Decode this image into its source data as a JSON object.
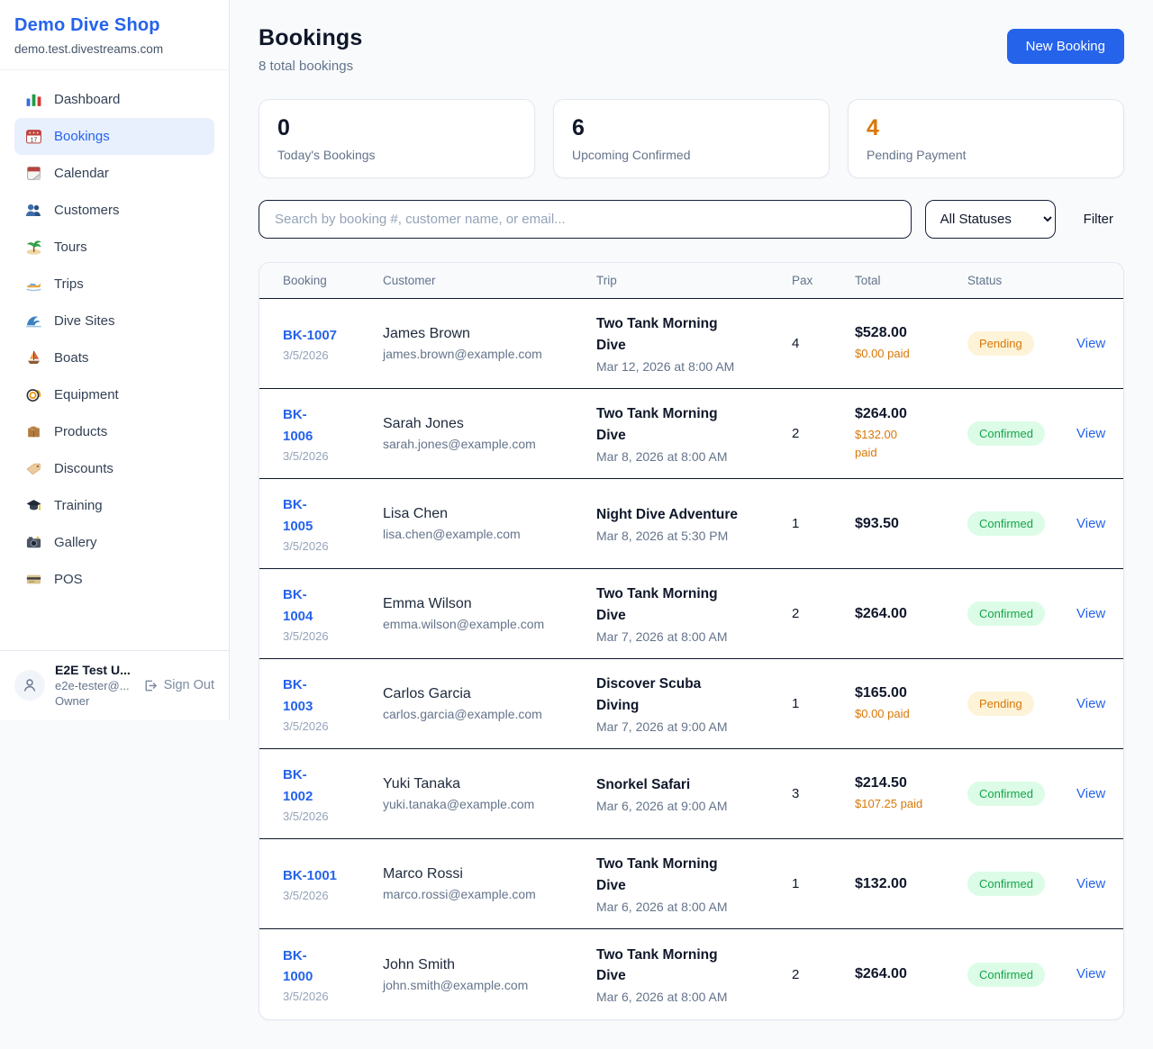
{
  "colors": {
    "accent": "#2563eb",
    "pending": "#d97706",
    "confirmed": "#16a34a",
    "pending_bg": "#fdf3d8",
    "confirmed_bg": "#dcfce7",
    "page_bg": "#f8fafc"
  },
  "app": {
    "name": "Demo Dive Shop",
    "domain": "demo.test.divestreams.com"
  },
  "sidebar": {
    "items": [
      {
        "label": "Dashboard",
        "icon": "bar-chart-icon",
        "active": false
      },
      {
        "label": "Bookings",
        "icon": "calendar-17-icon",
        "active": true
      },
      {
        "label": "Calendar",
        "icon": "tear-calendar-icon",
        "active": false
      },
      {
        "label": "Customers",
        "icon": "people-icon",
        "active": false
      },
      {
        "label": "Tours",
        "icon": "island-icon",
        "active": false
      },
      {
        "label": "Trips",
        "icon": "speedboat-icon",
        "active": false
      },
      {
        "label": "Dive Sites",
        "icon": "wave-icon",
        "active": false
      },
      {
        "label": "Boats",
        "icon": "sailboat-icon",
        "active": false
      },
      {
        "label": "Equipment",
        "icon": "dive-mask-icon",
        "active": false
      },
      {
        "label": "Products",
        "icon": "package-icon",
        "active": false
      },
      {
        "label": "Discounts",
        "icon": "tag-icon",
        "active": false
      },
      {
        "label": "Training",
        "icon": "graduation-cap-icon",
        "active": false
      },
      {
        "label": "Gallery",
        "icon": "camera-icon",
        "active": false
      },
      {
        "label": "POS",
        "icon": "credit-card-icon",
        "active": false
      }
    ],
    "user": {
      "name": "E2E Test U...",
      "email": "e2e-tester@...",
      "role": "Owner",
      "sign_out_label": "Sign Out"
    }
  },
  "header": {
    "title": "Bookings",
    "subtitle": "8 total bookings",
    "new_booking_label": "New Booking"
  },
  "stats": [
    {
      "value": "0",
      "label": "Today's Bookings",
      "highlight": false
    },
    {
      "value": "6",
      "label": "Upcoming Confirmed",
      "highlight": false
    },
    {
      "value": "4",
      "label": "Pending Payment",
      "highlight": true
    }
  ],
  "filters": {
    "search_placeholder": "Search by booking #, customer name, or email...",
    "status_selected": "All Statuses",
    "filter_label": "Filter"
  },
  "table": {
    "columns": [
      "Booking",
      "Customer",
      "Trip",
      "Pax",
      "Total",
      "Status"
    ],
    "view_label": "View",
    "rows": [
      {
        "id": "BK-1007",
        "id_two_line": false,
        "date": "3/5/2026",
        "customer": "James Brown",
        "email": "james.brown@example.com",
        "trip": "Two Tank Morning Dive",
        "trip_two_line": true,
        "trip_datetime": "Mar 12, 2026 at 8:00 AM",
        "pax": "4",
        "total": "$528.00",
        "paid": "$0.00 paid",
        "paid_two_line": false,
        "status": "Pending"
      },
      {
        "id": "BK-1006",
        "id_two_line": true,
        "date": "3/5/2026",
        "customer": "Sarah Jones",
        "email": "sarah.jones@example.com",
        "trip": "Two Tank Morning Dive",
        "trip_two_line": true,
        "trip_datetime": "Mar 8, 2026 at 8:00 AM",
        "pax": "2",
        "total": "$264.00",
        "paid": "$132.00 paid",
        "paid_two_line": true,
        "status": "Confirmed"
      },
      {
        "id": "BK-1005",
        "id_two_line": true,
        "date": "3/5/2026",
        "customer": "Lisa Chen",
        "email": "lisa.chen@example.com",
        "trip": "Night Dive Adventure",
        "trip_two_line": false,
        "trip_datetime": "Mar 8, 2026 at 5:30 PM",
        "pax": "1",
        "total": "$93.50",
        "paid": null,
        "paid_two_line": false,
        "status": "Confirmed"
      },
      {
        "id": "BK-1004",
        "id_two_line": true,
        "date": "3/5/2026",
        "customer": "Emma Wilson",
        "email": "emma.wilson@example.com",
        "trip": "Two Tank Morning Dive",
        "trip_two_line": true,
        "trip_datetime": "Mar 7, 2026 at 8:00 AM",
        "pax": "2",
        "total": "$264.00",
        "paid": null,
        "paid_two_line": false,
        "status": "Confirmed"
      },
      {
        "id": "BK-1003",
        "id_two_line": true,
        "date": "3/5/2026",
        "customer": "Carlos Garcia",
        "email": "carlos.garcia@example.com",
        "trip": "Discover Scuba Diving",
        "trip_two_line": true,
        "trip_datetime": "Mar 7, 2026 at 9:00 AM",
        "pax": "1",
        "total": "$165.00",
        "paid": "$0.00 paid",
        "paid_two_line": false,
        "status": "Pending"
      },
      {
        "id": "BK-1002",
        "id_two_line": true,
        "date": "3/5/2026",
        "customer": "Yuki Tanaka",
        "email": "yuki.tanaka@example.com",
        "trip": "Snorkel Safari",
        "trip_two_line": false,
        "trip_datetime": "Mar 6, 2026 at 9:00 AM",
        "pax": "3",
        "total": "$214.50",
        "paid": "$107.25 paid",
        "paid_two_line": false,
        "status": "Confirmed"
      },
      {
        "id": "BK-1001",
        "id_two_line": false,
        "date": "3/5/2026",
        "customer": "Marco Rossi",
        "email": "marco.rossi@example.com",
        "trip": "Two Tank Morning Dive",
        "trip_two_line": true,
        "trip_datetime": "Mar 6, 2026 at 8:00 AM",
        "pax": "1",
        "total": "$132.00",
        "paid": null,
        "paid_two_line": false,
        "status": "Confirmed"
      },
      {
        "id": "BK-1000",
        "id_two_line": true,
        "date": "3/5/2026",
        "customer": "John Smith",
        "email": "john.smith@example.com",
        "trip": "Two Tank Morning Dive",
        "trip_two_line": true,
        "trip_datetime": "Mar 6, 2026 at 8:00 AM",
        "pax": "2",
        "total": "$264.00",
        "paid": null,
        "paid_two_line": false,
        "status": "Confirmed"
      }
    ]
  }
}
